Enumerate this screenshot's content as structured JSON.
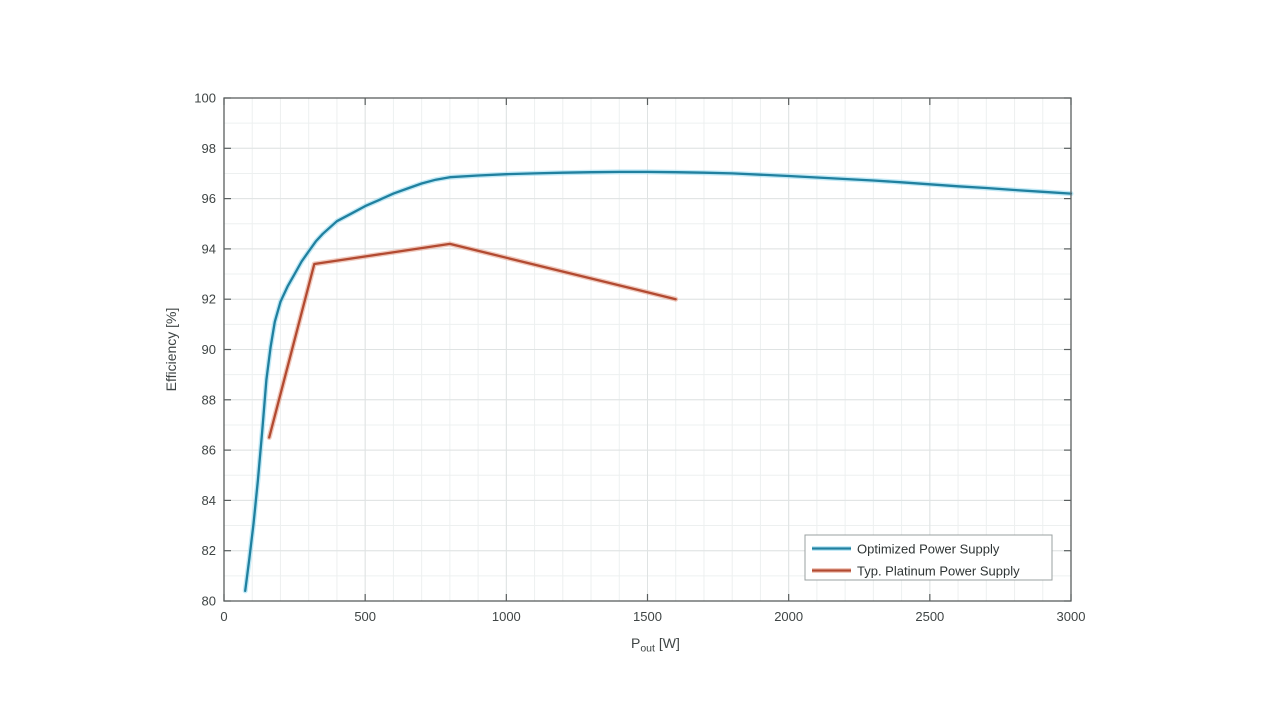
{
  "figure": {
    "background_color": "#ffffff"
  },
  "style": {
    "axis_line_color": "#5a5f5f",
    "tick_label_color": "#3f4545",
    "grid_major_color": "#dfe3e3",
    "grid_minor_color": "#edf0f0",
    "legend_border_color": "#9aa0a0",
    "legend_background": "#ffffff"
  },
  "chart_data": {
    "type": "line",
    "title": "",
    "xlabel": {
      "main": "P",
      "sub": "out",
      "unit": " [W]",
      "full": "P_out [W]"
    },
    "ylabel": "Efficiency [%]",
    "xlim": [
      0,
      3000
    ],
    "ylim": [
      80,
      100
    ],
    "x_ticks": [
      0,
      500,
      1000,
      1500,
      2000,
      2500,
      3000
    ],
    "y_ticks": [
      80,
      82,
      84,
      86,
      88,
      90,
      92,
      94,
      96,
      98,
      100
    ],
    "grid": {
      "major": true,
      "minor": true,
      "x_minor_step": 100,
      "y_minor_step": 1
    },
    "legend": {
      "position": "southeast"
    },
    "series": [
      {
        "name": "Optimized Power Supply",
        "color_core": "#20809f",
        "color_halo": "#8ed7ef",
        "points": [
          [
            75,
            80.4
          ],
          [
            90,
            81.7
          ],
          [
            105,
            83.1
          ],
          [
            120,
            84.8
          ],
          [
            135,
            86.7
          ],
          [
            150,
            88.8
          ],
          [
            165,
            90.1
          ],
          [
            180,
            91.1
          ],
          [
            200,
            91.9
          ],
          [
            225,
            92.5
          ],
          [
            250,
            93.0
          ],
          [
            275,
            93.5
          ],
          [
            300,
            93.9
          ],
          [
            325,
            94.3
          ],
          [
            350,
            94.6
          ],
          [
            400,
            95.1
          ],
          [
            450,
            95.4
          ],
          [
            500,
            95.7
          ],
          [
            550,
            95.95
          ],
          [
            600,
            96.2
          ],
          [
            650,
            96.4
          ],
          [
            700,
            96.6
          ],
          [
            750,
            96.75
          ],
          [
            800,
            96.85
          ],
          [
            900,
            96.92
          ],
          [
            1000,
            96.97
          ],
          [
            1100,
            97.0
          ],
          [
            1200,
            97.03
          ],
          [
            1300,
            97.05
          ],
          [
            1400,
            97.06
          ],
          [
            1500,
            97.06
          ],
          [
            1600,
            97.05
          ],
          [
            1700,
            97.03
          ],
          [
            1800,
            97.0
          ],
          [
            1900,
            96.95
          ],
          [
            2000,
            96.9
          ],
          [
            2100,
            96.84
          ],
          [
            2200,
            96.78
          ],
          [
            2300,
            96.72
          ],
          [
            2400,
            96.65
          ],
          [
            2500,
            96.57
          ],
          [
            2600,
            96.49
          ],
          [
            2700,
            96.42
          ],
          [
            2800,
            96.34
          ],
          [
            2900,
            96.27
          ],
          [
            3000,
            96.2
          ]
        ]
      },
      {
        "name": "Typ. Platinum Power Supply",
        "color_core": "#b24a31",
        "color_halo": "#e39c87",
        "points": [
          [
            160,
            86.5
          ],
          [
            320,
            93.4
          ],
          [
            800,
            94.2
          ],
          [
            1600,
            92.0
          ]
        ]
      }
    ]
  }
}
